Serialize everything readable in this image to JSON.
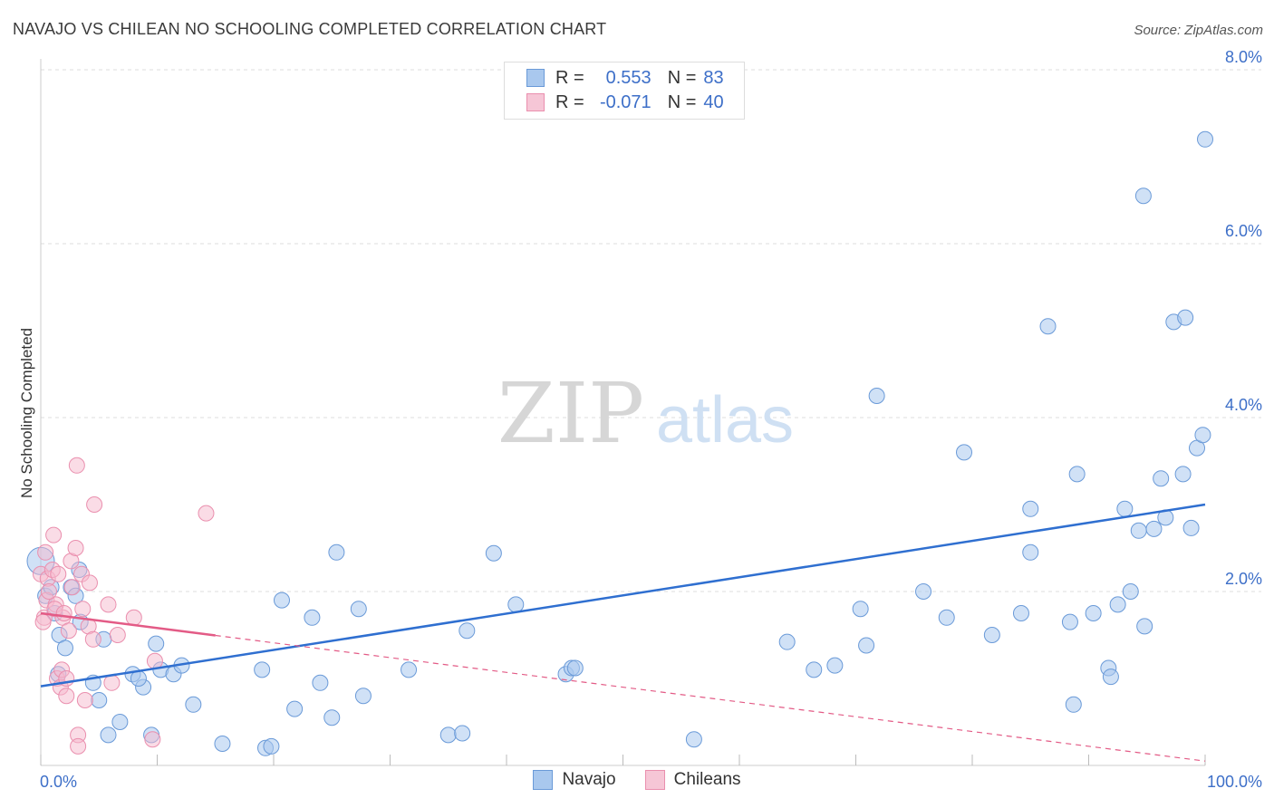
{
  "header": {
    "title": "NAVAJO VS CHILEAN NO SCHOOLING COMPLETED CORRELATION CHART",
    "source": "Source: ZipAtlas.com"
  },
  "watermark": {
    "zip": "ZIP",
    "atlas": "atlas"
  },
  "legend_top": {
    "r_label": "R =",
    "n_label": "N =",
    "navajo": {
      "r": "0.553",
      "n": "83"
    },
    "chileans": {
      "r": "-0.071",
      "n": "40"
    }
  },
  "legend_bottom": {
    "navajo": "Navajo",
    "chileans": "Chileans"
  },
  "colors": {
    "navajo_fill": "#a9c8ee",
    "navajo_stroke": "#6a9ad8",
    "navajo_line": "#2f6fd0",
    "chilean_fill": "#f6b9cd",
    "chilean_stroke": "#ea8fae",
    "chilean_line": "#e35b86",
    "axis_text": "#3d6fc8",
    "grid": "#dddddd"
  },
  "chart_data": {
    "type": "scatter",
    "title": "NAVAJO VS CHILEAN NO SCHOOLING COMPLETED CORRELATION CHART",
    "xlabel": "",
    "ylabel": "No Schooling Completed",
    "xlim": [
      0,
      100
    ],
    "ylim": [
      0,
      8.2
    ],
    "x_tick_labels": [
      "0.0%",
      "100.0%"
    ],
    "y_ticks": [
      2,
      4,
      6,
      8
    ],
    "y_tick_labels": [
      "2.0%",
      "4.0%",
      "6.0%",
      "8.0%"
    ],
    "series": [
      {
        "name": "Navajo",
        "points": [
          [
            0.0,
            2.35
          ],
          [
            0.4,
            1.95
          ],
          [
            0.9,
            2.05
          ],
          [
            1.2,
            1.75
          ],
          [
            1.6,
            1.5
          ],
          [
            2.1,
            1.35
          ],
          [
            2.6,
            2.05
          ],
          [
            3.0,
            1.95
          ],
          [
            3.3,
            2.25
          ],
          [
            4.5,
            0.95
          ],
          [
            5.0,
            0.75
          ],
          [
            5.4,
            1.45
          ],
          [
            5.8,
            0.35
          ],
          [
            6.8,
            0.5
          ],
          [
            7.9,
            1.05
          ],
          [
            8.8,
            0.9
          ],
          [
            9.5,
            0.35
          ],
          [
            9.9,
            1.4
          ],
          [
            10.3,
            1.1
          ],
          [
            11.4,
            1.05
          ],
          [
            12.1,
            1.15
          ],
          [
            13.1,
            0.7
          ],
          [
            15.6,
            0.25
          ],
          [
            19.0,
            1.1
          ],
          [
            19.3,
            0.2
          ],
          [
            19.8,
            0.22
          ],
          [
            20.7,
            1.9
          ],
          [
            21.8,
            0.65
          ],
          [
            23.3,
            1.7
          ],
          [
            24.0,
            0.95
          ],
          [
            25.0,
            0.55
          ],
          [
            25.4,
            2.45
          ],
          [
            27.3,
            1.8
          ],
          [
            27.7,
            0.8
          ],
          [
            31.6,
            1.1
          ],
          [
            35.0,
            0.35
          ],
          [
            36.2,
            0.37
          ],
          [
            36.6,
            1.55
          ],
          [
            38.9,
            2.44
          ],
          [
            40.8,
            1.85
          ],
          [
            45.1,
            1.05
          ],
          [
            45.6,
            1.12
          ],
          [
            45.9,
            1.12
          ],
          [
            56.1,
            0.3
          ],
          [
            64.1,
            1.42
          ],
          [
            66.4,
            1.1
          ],
          [
            68.2,
            1.15
          ],
          [
            70.4,
            1.8
          ],
          [
            70.9,
            1.38
          ],
          [
            71.8,
            4.25
          ],
          [
            75.8,
            2.0
          ],
          [
            77.8,
            1.7
          ],
          [
            79.3,
            3.6
          ],
          [
            81.7,
            1.5
          ],
          [
            84.2,
            1.75
          ],
          [
            85.0,
            2.95
          ],
          [
            85.0,
            2.45
          ],
          [
            86.5,
            5.05
          ],
          [
            88.4,
            1.65
          ],
          [
            88.7,
            0.7
          ],
          [
            89.0,
            3.35
          ],
          [
            90.4,
            1.75
          ],
          [
            91.7,
            1.12
          ],
          [
            91.9,
            1.02
          ],
          [
            92.5,
            1.85
          ],
          [
            93.1,
            2.95
          ],
          [
            93.6,
            2.0
          ],
          [
            94.3,
            2.7
          ],
          [
            94.8,
            1.6
          ],
          [
            95.6,
            2.72
          ],
          [
            94.7,
            6.55
          ],
          [
            96.2,
            3.3
          ],
          [
            96.6,
            2.85
          ],
          [
            97.3,
            5.1
          ],
          [
            98.1,
            3.35
          ],
          [
            98.3,
            5.15
          ],
          [
            98.8,
            2.73
          ],
          [
            99.3,
            3.65
          ],
          [
            99.8,
            3.8
          ],
          [
            100.0,
            7.2
          ],
          [
            3.4,
            1.65
          ],
          [
            1.5,
            1.05
          ],
          [
            8.4,
            1.0
          ]
        ]
      },
      {
        "name": "Chileans",
        "points": [
          [
            0.0,
            2.2
          ],
          [
            0.3,
            1.7
          ],
          [
            0.5,
            1.9
          ],
          [
            0.6,
            2.15
          ],
          [
            1.0,
            2.25
          ],
          [
            1.1,
            2.65
          ],
          [
            1.3,
            1.85
          ],
          [
            1.4,
            1.0
          ],
          [
            1.5,
            2.2
          ],
          [
            1.7,
            0.9
          ],
          [
            1.8,
            1.1
          ],
          [
            1.9,
            1.7
          ],
          [
            2.2,
            1.0
          ],
          [
            2.2,
            0.8
          ],
          [
            2.4,
            1.55
          ],
          [
            2.6,
            2.35
          ],
          [
            2.7,
            2.05
          ],
          [
            3.0,
            2.5
          ],
          [
            3.1,
            3.45
          ],
          [
            3.2,
            0.35
          ],
          [
            3.2,
            0.22
          ],
          [
            3.5,
            2.2
          ],
          [
            3.6,
            1.8
          ],
          [
            3.8,
            0.75
          ],
          [
            4.1,
            1.6
          ],
          [
            4.2,
            2.1
          ],
          [
            4.5,
            1.45
          ],
          [
            4.6,
            3.0
          ],
          [
            5.8,
            1.85
          ],
          [
            6.1,
            0.95
          ],
          [
            6.6,
            1.5
          ],
          [
            8.0,
            1.7
          ],
          [
            9.6,
            0.3
          ],
          [
            9.8,
            1.2
          ],
          [
            14.2,
            2.9
          ],
          [
            0.2,
            1.65
          ],
          [
            0.7,
            2.0
          ],
          [
            1.2,
            1.8
          ],
          [
            2.0,
            1.75
          ],
          [
            0.4,
            2.45
          ]
        ]
      }
    ],
    "trend_lines": [
      {
        "series": "Navajo",
        "x": [
          0,
          100
        ],
        "y": [
          0.91,
          3.0
        ]
      },
      {
        "series": "Chileans",
        "solid_x": [
          0,
          15
        ],
        "x": [
          0,
          100
        ],
        "y": [
          1.75,
          0.05
        ]
      }
    ]
  }
}
